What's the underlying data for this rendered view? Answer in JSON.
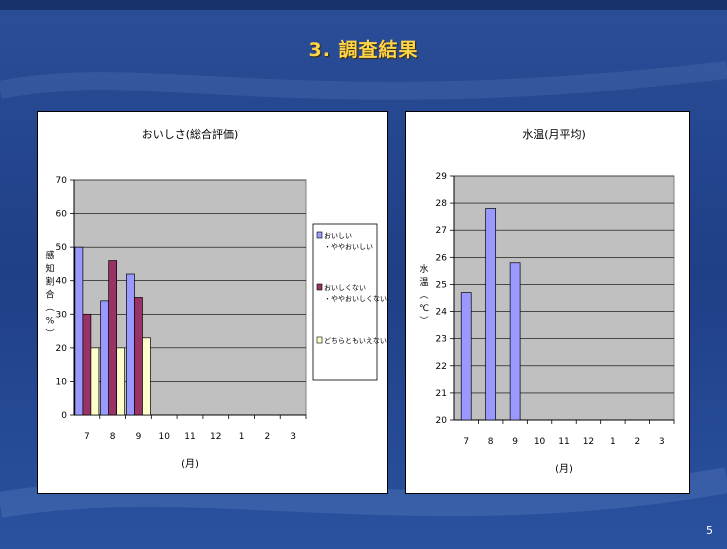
{
  "slide": {
    "title": "3. 調査結果",
    "page_number": "5",
    "colors": {
      "background": "#1f3f86",
      "title": "#ffd54a"
    }
  },
  "chart_data": [
    {
      "type": "bar",
      "title": "おいしさ(総合評価)",
      "xlabel": "(月)",
      "ylabel": "感知割合(%)",
      "categories": [
        "7",
        "8",
        "9",
        "10",
        "11",
        "12",
        "1",
        "2",
        "3"
      ],
      "ylim": [
        0,
        70
      ],
      "yticks": [
        0,
        10,
        20,
        30,
        40,
        50,
        60,
        70
      ],
      "grid": true,
      "legend": "right",
      "series": [
        {
          "name": "おいしい・ややおいしい",
          "color": "#9999ff",
          "values": [
            50,
            34,
            42,
            null,
            null,
            null,
            null,
            null,
            null
          ]
        },
        {
          "name": "おいしくない・ややおいしくない",
          "color": "#993366",
          "values": [
            30,
            46,
            35,
            null,
            null,
            null,
            null,
            null,
            null
          ]
        },
        {
          "name": "どちらともいえない",
          "color": "#ffffcc",
          "values": [
            20,
            20,
            23,
            null,
            null,
            null,
            null,
            null,
            null
          ]
        }
      ]
    },
    {
      "type": "bar",
      "title": "水温(月平均)",
      "xlabel": "(月)",
      "ylabel": "水温(℃)",
      "categories": [
        "7",
        "8",
        "9",
        "10",
        "11",
        "12",
        "1",
        "2",
        "3"
      ],
      "ylim": [
        20,
        29
      ],
      "yticks": [
        20,
        21,
        22,
        23,
        24,
        25,
        26,
        27,
        28,
        29
      ],
      "grid": true,
      "legend": "none",
      "series": [
        {
          "color": "#9999ff",
          "values": [
            24.7,
            27.8,
            25.8,
            null,
            null,
            null,
            null,
            null,
            null
          ]
        }
      ]
    }
  ]
}
